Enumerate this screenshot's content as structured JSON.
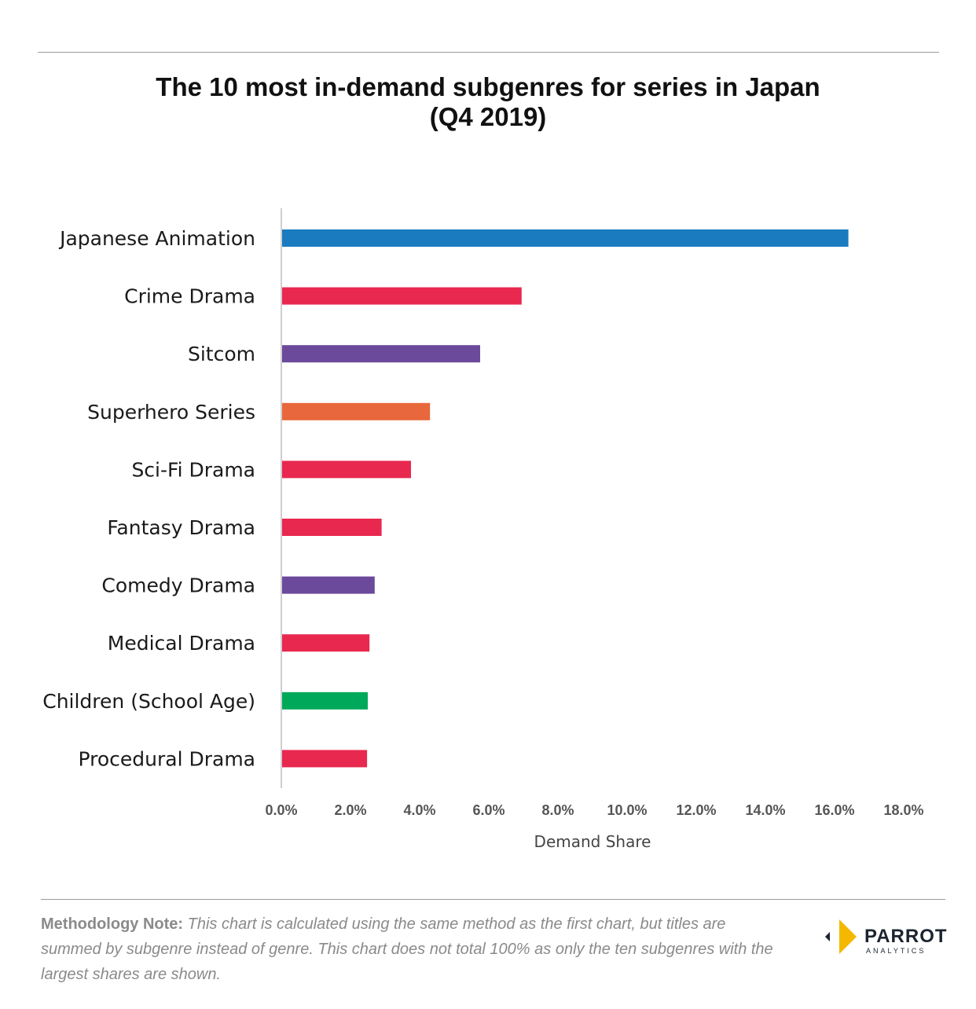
{
  "chart_data": {
    "type": "bar",
    "orientation": "horizontal",
    "title": "The 10 most in-demand subgenres for series in Japan",
    "subtitle": "(Q4 2019)",
    "xlabel": "Demand Share",
    "ylabel": "",
    "xlim": [
      0,
      18
    ],
    "x_ticks": [
      0,
      2,
      4,
      6,
      8,
      10,
      12,
      14,
      16,
      18
    ],
    "x_tick_labels": [
      "0.0%",
      "2.0%",
      "4.0%",
      "6.0%",
      "8.0%",
      "10.0%",
      "12.0%",
      "14.0%",
      "16.0%",
      "18.0%"
    ],
    "grid": false,
    "categories": [
      "Japanese Animation",
      "Crime Drama",
      "Sitcom",
      "Superhero Series",
      "Sci-Fi Drama",
      "Fantasy Drama",
      "Comedy Drama",
      "Medical Drama",
      "Children (School Age)",
      "Procedural Drama"
    ],
    "values": [
      16.4,
      6.95,
      5.75,
      4.3,
      3.75,
      2.9,
      2.7,
      2.55,
      2.5,
      2.48
    ],
    "colors": [
      "#1a7bbf",
      "#e8284f",
      "#6b4a9b",
      "#e8673c",
      "#e8284f",
      "#e8284f",
      "#6b4a9b",
      "#e8284f",
      "#00a85a",
      "#e8284f"
    ]
  },
  "footer": {
    "note_lead": "Methodology Note:",
    "note_body": " This chart is calculated using the same method as the first chart, but titles are summed by subgenre instead of genre. This chart does not total 100% as only the ten subgenres with the largest shares are shown."
  },
  "logo": {
    "word": "PARROT",
    "sub": "ANALYTICS",
    "colors": [
      "#f5b800",
      "#1b2430"
    ]
  }
}
